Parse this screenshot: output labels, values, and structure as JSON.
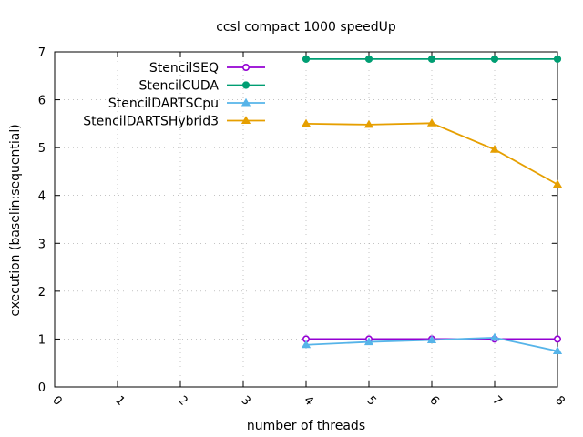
{
  "chart_data": {
    "type": "line",
    "title": "ccsl compact 1000 speedUp",
    "xlabel": "number of threads",
    "ylabel": "execution (baselin:sequential)",
    "xlim": [
      0,
      8
    ],
    "ylim": [
      0,
      7
    ],
    "x_ticks": [
      "0",
      "1",
      "2",
      "3",
      "4",
      "5",
      "6",
      "7",
      "8"
    ],
    "y_ticks": [
      "0",
      "1",
      "2",
      "3",
      "4",
      "5",
      "6",
      "7"
    ],
    "grid": true,
    "legend_position": "top-left",
    "series": [
      {
        "name": "StencilSEQ",
        "color": "#9400d3",
        "marker": "circle-open",
        "x": [
          4,
          5,
          6,
          7,
          8
        ],
        "y": [
          1.0,
          1.0,
          1.0,
          1.0,
          1.0
        ]
      },
      {
        "name": "StencilCUDA",
        "color": "#009e73",
        "marker": "circle-filled",
        "x": [
          4,
          5,
          6,
          7,
          8
        ],
        "y": [
          6.85,
          6.85,
          6.85,
          6.85,
          6.85
        ]
      },
      {
        "name": "StencilDARTSCpu",
        "color": "#56b4e9",
        "marker": "triangle-filled",
        "x": [
          4,
          5,
          6,
          7,
          8
        ],
        "y": [
          0.88,
          0.94,
          0.98,
          1.03,
          0.75
        ]
      },
      {
        "name": "StencilDARTSHybrid3",
        "color": "#e69f00",
        "marker": "triangle-filled",
        "x": [
          4,
          5,
          6,
          7,
          8
        ],
        "y": [
          5.5,
          5.48,
          5.51,
          4.96,
          4.23
        ]
      }
    ]
  }
}
